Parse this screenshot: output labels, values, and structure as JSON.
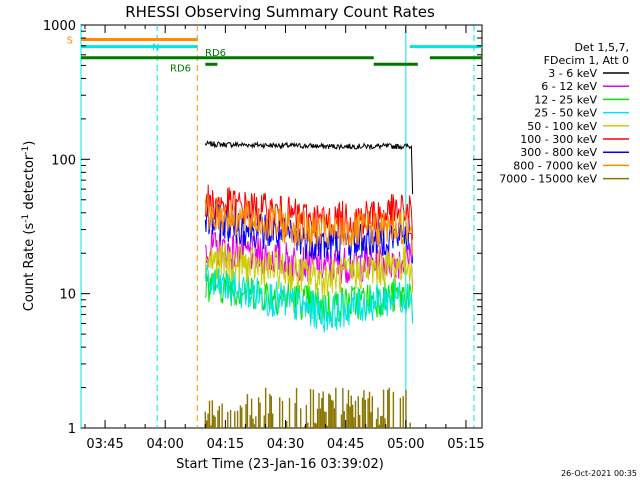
{
  "chart_data": {
    "type": "line",
    "title": "RHESSI Observing Summary Count Rates",
    "xlabel": "Start Time (23-Jan-16 03:39:02)",
    "ylabel_main": "Count Rate (s",
    "ylabel_sup1": "-1",
    "ylabel_mid": " detector",
    "ylabel_sup2": "-1",
    "ylabel_end": ")",
    "y_scale": "log",
    "ylim": [
      1,
      1000
    ],
    "xlim": [
      "03:39",
      "05:19"
    ],
    "x_tick_labels": [
      "03:45",
      "04:00",
      "04:15",
      "04:30",
      "04:45",
      "05:00",
      "05:15"
    ],
    "y_tick_labels": [
      "1",
      "10",
      "100",
      "1000"
    ],
    "legend_placement": "top-right",
    "legend_header": [
      "Det 1,5,7,",
      "FDecim 1, Att 0"
    ],
    "series": [
      {
        "name": "3 - 6 keV",
        "color": "#000000",
        "start": "04:10",
        "end": "05:02",
        "level_start": 130,
        "level_mid": 125,
        "level_end": 125
      },
      {
        "name": "6 - 12 keV",
        "color": "#e600e6",
        "start": "04:10",
        "end": "05:02",
        "level_start": 22,
        "level_mid": 16,
        "level_end": 18
      },
      {
        "name": "12 - 25 keV",
        "color": "#00e600",
        "start": "04:10",
        "end": "05:02",
        "level_start": 12,
        "level_mid": 8,
        "level_end": 10
      },
      {
        "name": "25 - 50 keV",
        "color": "#00e6e6",
        "start": "04:10",
        "end": "05:02",
        "level_start": 12,
        "level_mid": 7,
        "level_end": 10
      },
      {
        "name": "50 - 100 keV",
        "color": "#cccc00",
        "start": "04:10",
        "end": "05:02",
        "level_start": 18,
        "level_mid": 13,
        "level_end": 17
      },
      {
        "name": "100 - 300 keV",
        "color": "#ff0000",
        "start": "04:10",
        "end": "05:02",
        "level_start": 48,
        "level_mid": 34,
        "level_end": 42
      },
      {
        "name": "300 - 800 keV",
        "color": "#0000ff",
        "start": "04:10",
        "end": "05:02",
        "level_start": 35,
        "level_mid": 23,
        "level_end": 28
      },
      {
        "name": "800 - 7000 keV",
        "color": "#ff8c00",
        "start": "04:10",
        "end": "05:02",
        "level_start": 40,
        "level_mid": 28,
        "level_end": 32
      },
      {
        "name": "7000 - 15000 keV",
        "color": "#8b7500",
        "start": "04:10",
        "end": "05:02",
        "level_start": 1.5,
        "level_mid": 1.2,
        "level_end": 1.3
      }
    ],
    "top_bars": [
      {
        "label": "S",
        "color": "#ff8c00",
        "segments": [
          [
            "03:39",
            "04:08"
          ]
        ],
        "level": 780
      },
      {
        "label": "N",
        "color": "#00e6e6",
        "segments": [
          [
            "03:39",
            "04:08"
          ],
          [
            "05:01",
            "05:19"
          ]
        ],
        "level": 690
      },
      {
        "label": "RD6",
        "color": "#007800",
        "segments": [
          [
            "03:39",
            "04:52"
          ],
          [
            "05:06",
            "05:19"
          ]
        ],
        "level": 570
      },
      {
        "label": "RD6",
        "color": "#007800",
        "segments": [
          [
            "04:10",
            "04:13"
          ],
          [
            "04:52",
            "05:03"
          ]
        ],
        "level": 510
      }
    ],
    "vertical_lines": [
      {
        "time": "03:39",
        "color": "#00e6e6",
        "style": "solid"
      },
      {
        "time": "03:58",
        "color": "#00e6e6",
        "style": "dashed"
      },
      {
        "time": "04:08",
        "color": "#ff8c00",
        "style": "dashed"
      },
      {
        "time": "05:00",
        "color": "#00e6e6",
        "style": "solid"
      },
      {
        "time": "05:17",
        "color": "#00e6e6",
        "style": "dashed"
      }
    ],
    "timestamp": "26-Oct-2021 00:35"
  }
}
